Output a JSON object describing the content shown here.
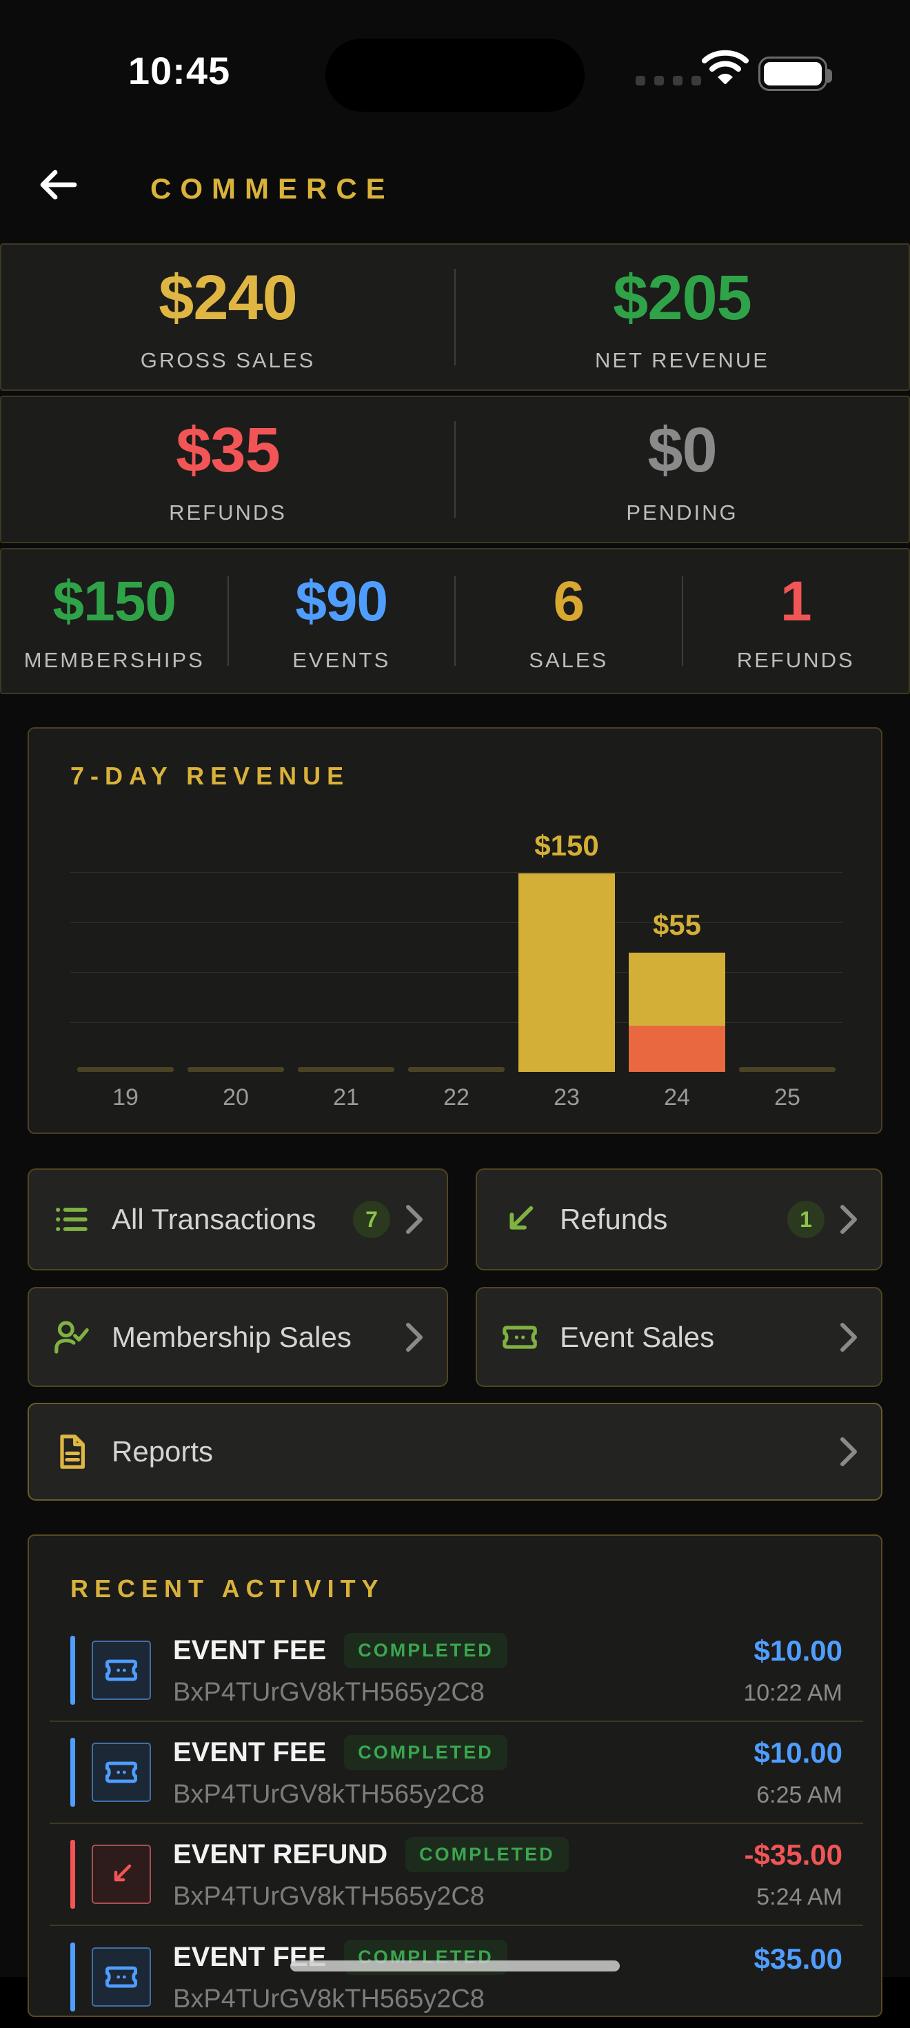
{
  "status_bar": {
    "time": "10:45"
  },
  "header": {
    "title": "COMMERCE"
  },
  "summary": {
    "row1": [
      {
        "value": "$240",
        "label": "GROSS SALES",
        "color": "#e0b643"
      },
      {
        "value": "$205",
        "label": "NET REVENUE",
        "color": "#2fa347"
      }
    ],
    "row2": [
      {
        "value": "$35",
        "label": "REFUNDS",
        "color": "#f25555"
      },
      {
        "value": "$0",
        "label": "PENDING",
        "color": "#8a8a8a"
      }
    ],
    "row3": [
      {
        "value": "$150",
        "label": "MEMBERSHIPS",
        "color": "#2fa347"
      },
      {
        "value": "$90",
        "label": "EVENTS",
        "color": "#4f9eff"
      },
      {
        "value": "6",
        "label": "SALES",
        "color": "#d9a92f"
      },
      {
        "value": "1",
        "label": "REFUNDS",
        "color": "#f25555"
      }
    ]
  },
  "chart_data": {
    "type": "bar",
    "title": "7-DAY REVENUE",
    "categories": [
      "19",
      "20",
      "21",
      "22",
      "23",
      "24",
      "25"
    ],
    "series": [
      {
        "name": "revenue",
        "color": "#d4af37",
        "values": [
          0,
          0,
          0,
          0,
          150,
          55,
          0
        ]
      },
      {
        "name": "refunds",
        "color": "#e8693f",
        "values": [
          0,
          0,
          0,
          0,
          0,
          35,
          0
        ]
      }
    ],
    "bar_labels": [
      "",
      "",
      "",
      "",
      "$150",
      "$55",
      ""
    ],
    "ylim": [
      0,
      150
    ],
    "gridlines": 4,
    "legend": "none"
  },
  "actions": [
    {
      "label": "All Transactions",
      "badge": "7",
      "icon": "list-icon"
    },
    {
      "label": "Refunds",
      "badge": "1",
      "icon": "refund-arrow-icon"
    },
    {
      "label": "Membership Sales",
      "badge": "",
      "icon": "member-check-icon"
    },
    {
      "label": "Event Sales",
      "badge": "",
      "icon": "ticket-icon"
    },
    {
      "label": "Reports",
      "badge": "",
      "icon": "document-icon"
    }
  ],
  "recent_activity": {
    "title": "RECENT ACTIVITY",
    "items": [
      {
        "title": "EVENT FEE",
        "status": "COMPLETED",
        "reference": "BxP4TUrGV8kTH565y2C8",
        "amount": "$10.00",
        "time": "10:22 AM",
        "kind": "fee"
      },
      {
        "title": "EVENT FEE",
        "status": "COMPLETED",
        "reference": "BxP4TUrGV8kTH565y2C8",
        "amount": "$10.00",
        "time": "6:25 AM",
        "kind": "fee"
      },
      {
        "title": "EVENT REFUND",
        "status": "COMPLETED",
        "reference": "BxP4TUrGV8kTH565y2C8",
        "amount": "-$35.00",
        "time": "5:24 AM",
        "kind": "refund"
      },
      {
        "title": "EVENT FEE",
        "status": "COMPLETED",
        "reference": "BxP4TUrGV8kTH565y2C8",
        "amount": "$35.00",
        "time": "",
        "kind": "fee"
      }
    ]
  },
  "colors": {
    "accent_gold": "#d9b23a",
    "bar_gold": "#d4af37",
    "bar_orange": "#e8693f",
    "green": "#2fa347",
    "icon_green": "#7fb241",
    "blue": "#4f9eff",
    "red": "#f25555",
    "card_bg": "#1c1c1b",
    "card_border": "#3e3820",
    "page_bg": "#0b0b0b"
  }
}
